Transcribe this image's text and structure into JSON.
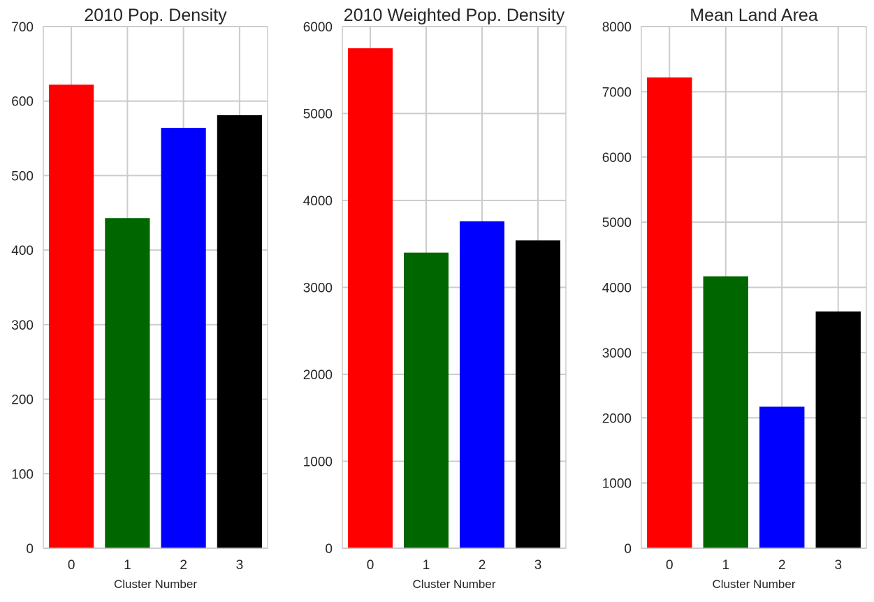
{
  "chart_data": [
    {
      "type": "bar",
      "title": "2010 Pop. Density",
      "xlabel": "",
      "ylabel": "",
      "categories": [
        "0",
        "1",
        "2",
        "3"
      ],
      "values": [
        622,
        443,
        564,
        581
      ],
      "colors": [
        "#ff0000",
        "#006600",
        "#0000ff",
        "#000000"
      ],
      "ylim": [
        0,
        700
      ],
      "yticks": [
        "0",
        "100",
        "200",
        "300",
        "400",
        "500",
        "600",
        "700"
      ],
      "grid": true
    },
    {
      "type": "bar",
      "title": "2010 Weighted Pop. Density",
      "xlabel": "Cluster Number",
      "ylabel": "",
      "categories": [
        "0",
        "1",
        "2",
        "3"
      ],
      "values": [
        5750,
        3400,
        3760,
        3540
      ],
      "colors": [
        "#ff0000",
        "#006600",
        "#0000ff",
        "#000000"
      ],
      "ylim": [
        0,
        6000
      ],
      "yticks": [
        "0",
        "1000",
        "2000",
        "3000",
        "4000",
        "5000",
        "6000"
      ],
      "grid": true
    },
    {
      "type": "bar",
      "title": "Mean Land Area",
      "xlabel": "Cluster Number",
      "ylabel": "",
      "categories": [
        "0",
        "1",
        "2",
        "3"
      ],
      "values": [
        7220,
        4170,
        2170,
        3630
      ],
      "colors": [
        "#ff0000",
        "#006600",
        "#0000ff",
        "#000000"
      ],
      "ylim": [
        0,
        8000
      ],
      "yticks": [
        "0",
        "1000",
        "2000",
        "3000",
        "4000",
        "5000",
        "6000",
        "7000",
        "8000"
      ],
      "grid": true
    }
  ],
  "first_panel_xlabel": "Cluster Number"
}
